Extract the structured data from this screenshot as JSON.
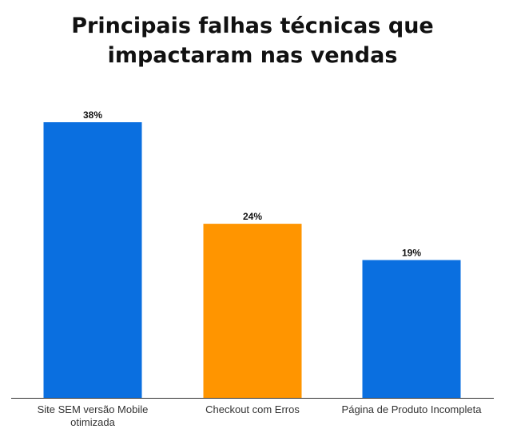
{
  "chart_data": {
    "type": "bar",
    "title": "Principais falhas técnicas que impactaram nas vendas",
    "categories": [
      "Site SEM versão Mobile otimizada",
      "Checkout com Erros",
      "Página de Produto Incompleta"
    ],
    "category_lines": [
      [
        "Site SEM versão Mobile",
        "otimizada"
      ],
      [
        "Checkout com Erros"
      ],
      [
        "Página de Produto Incompleta"
      ]
    ],
    "values": [
      38,
      24,
      19
    ],
    "value_labels": [
      "38%",
      "24%",
      "19%"
    ],
    "colors": [
      "#0a6fe0",
      "#ff9500",
      "#0a6fe0"
    ],
    "xlabel": "",
    "ylabel": "",
    "ylim": [
      0,
      38
    ],
    "grid": false,
    "legend": "none"
  }
}
